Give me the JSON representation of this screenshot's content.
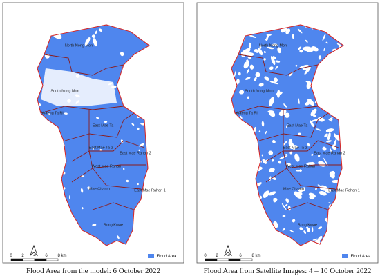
{
  "panels": [
    {
      "regions": [
        "North Nong Mon",
        "South Nong Mon",
        "Waeng Ta Ri",
        "East Mae Ta",
        "East Mae Ta 2",
        "East Mae Rahan 2",
        "West Mae Rahan",
        "East Mae Rahan 1",
        "Mae Charim",
        "Song Kwae"
      ],
      "scale": [
        "0",
        "2",
        "4",
        "6",
        "8 km"
      ],
      "legend": "Flood Area",
      "caption": "Flood Area from the model: 6 October 2022"
    },
    {
      "regions": [
        "North Nong Mon",
        "South Nong Mon",
        "Waeng Ta Ri",
        "East Mae Ta",
        "East Mae Ta 2",
        "East Mae Rahan 2",
        "West Mae Rahan",
        "East Mae Rahan 1",
        "Mae Charim",
        "Song Kwae"
      ],
      "scale": [
        "0",
        "2",
        "4",
        "6",
        "8 km"
      ],
      "legend": "Flood Area",
      "caption": "Flood Area from Satellite Images:  4 – 10 October 2022"
    }
  ]
}
